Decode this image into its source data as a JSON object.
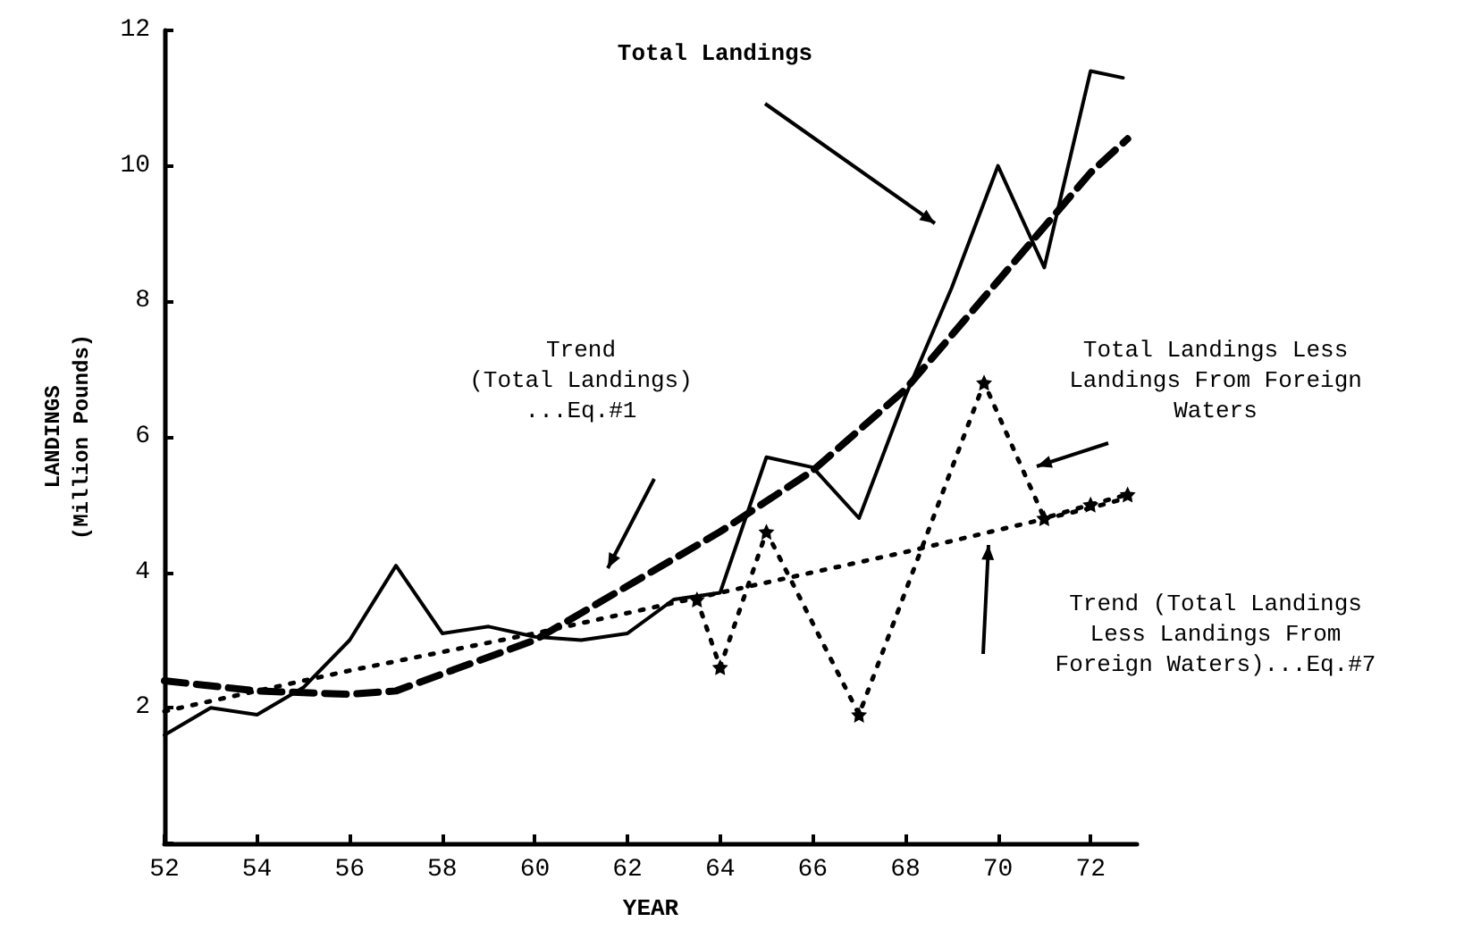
{
  "chart_data": {
    "type": "line",
    "xlabel": "YEAR",
    "ylabel": "LANDINGS\n(Million Pounds)",
    "xlim": [
      52,
      73
    ],
    "xticks": [
      52,
      54,
      56,
      58,
      60,
      62,
      64,
      66,
      68,
      70,
      72
    ],
    "ylim": [
      0,
      12
    ],
    "yticks": [
      {
        "value": 0,
        "label": null
      },
      2,
      4,
      6,
      8,
      10,
      12
    ],
    "grid": false,
    "marker": "none",
    "series": [
      {
        "color": "#000000",
        "line_style": "solid",
        "x": [
          52,
          53,
          54,
          55,
          56,
          57,
          58,
          59,
          60,
          61,
          62,
          63,
          64,
          65,
          66,
          67,
          68,
          69,
          70,
          71,
          72,
          72.7
        ],
        "values": [
          1.6,
          2.0,
          1.9,
          2.3,
          3.0,
          4.1,
          3.1,
          3.2,
          3.05,
          3.0,
          3.1,
          3.6,
          3.7,
          5.7,
          5.55,
          4.8,
          6.6,
          8.2,
          10.0,
          8.5,
          11.4,
          11.3
        ]
      },
      {
        "color": "#000000",
        "line_style": "dashed",
        "x": [
          52,
          54,
          56,
          57,
          58,
          60,
          62,
          64,
          66,
          68,
          70,
          72,
          72.8
        ],
        "values": [
          2.4,
          2.25,
          2.2,
          2.25,
          2.5,
          3.0,
          3.8,
          4.6,
          5.5,
          6.7,
          8.3,
          9.9,
          10.4
        ]
      },
      {
        "color": "#000000",
        "line_style": "dotted",
        "x": [
          52,
          56,
          60,
          64,
          68,
          72,
          72.8
        ],
        "values": [
          1.95,
          2.55,
          3.1,
          3.7,
          4.3,
          4.95,
          5.1
        ]
      },
      {
        "color": "#000000",
        "line_style": "dotted",
        "marker": "star",
        "x": [
          63.5,
          64,
          65,
          67,
          69.7,
          71,
          72,
          72.8
        ],
        "values": [
          3.6,
          2.6,
          4.6,
          1.9,
          6.8,
          4.8,
          5.0,
          5.15
        ]
      }
    ],
    "annotations": [
      "Total Landings",
      "Trend\n(Total Landings)\n...Eq.#1",
      "Total Landings Less\nLandings From Foreign\nWaters",
      "Trend (Total Landings\nLess Landings From\nForeign Waters)...Eq.#7"
    ]
  }
}
